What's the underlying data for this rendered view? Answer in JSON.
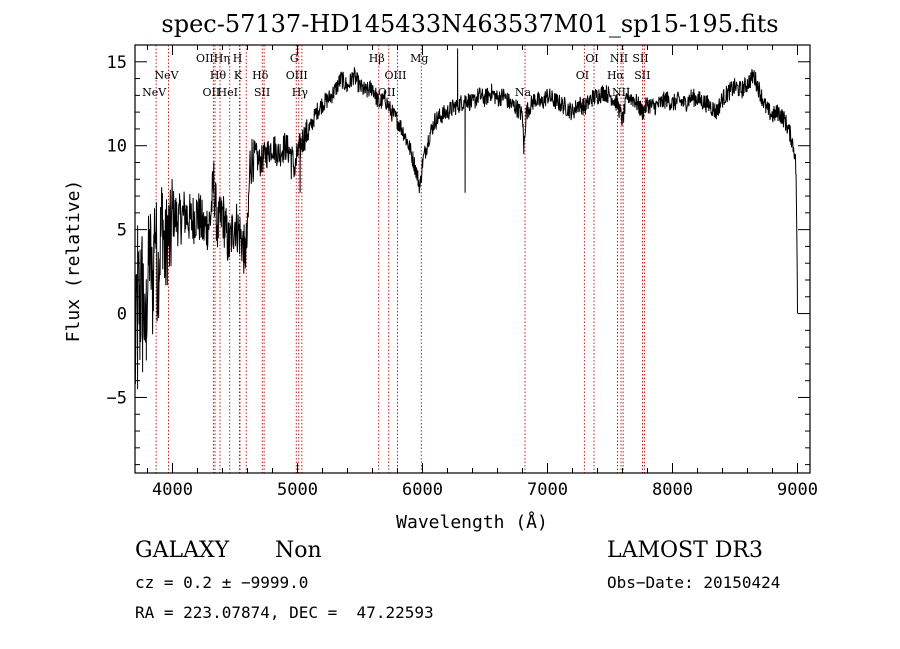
{
  "chart_data": {
    "type": "line",
    "title": "spec-57137-HD145433N463537M01_sp15-195.fits",
    "xlabel": "Wavelength (Å)",
    "ylabel": "Flux (relative)",
    "xlim": [
      3700,
      9100
    ],
    "ylim": [
      -9.5,
      16
    ],
    "xticks": [
      4000,
      5000,
      6000,
      7000,
      8000,
      9000
    ],
    "yticks": [
      -5,
      0,
      5,
      10,
      15
    ],
    "xtick_labels": [
      "4000",
      "5000",
      "6000",
      "7000",
      "8000",
      "9000"
    ],
    "ytick_labels": [
      "−5",
      "0",
      "5",
      "10",
      "15"
    ],
    "series": [
      {
        "name": "spectrum",
        "anchors": [
          [
            3700,
            -4
          ],
          [
            3720,
            3
          ],
          [
            3740,
            -1
          ],
          [
            3760,
            3
          ],
          [
            3780,
            -2
          ],
          [
            3800,
            2
          ],
          [
            3820,
            4
          ],
          [
            3840,
            1
          ],
          [
            3860,
            6
          ],
          [
            3880,
            2
          ],
          [
            3900,
            4
          ],
          [
            3920,
            6
          ],
          [
            3940,
            3
          ],
          [
            3960,
            5
          ],
          [
            3980,
            4
          ],
          [
            4000,
            6
          ],
          [
            4050,
            5.5
          ],
          [
            4100,
            6
          ],
          [
            4150,
            5.5
          ],
          [
            4200,
            6
          ],
          [
            4250,
            5
          ],
          [
            4300,
            5.5
          ],
          [
            4330,
            7.8
          ],
          [
            4360,
            5
          ],
          [
            4400,
            6
          ],
          [
            4450,
            4
          ],
          [
            4500,
            5.5
          ],
          [
            4550,
            4.5
          ],
          [
            4580,
            3.5
          ],
          [
            4600,
            4.5
          ],
          [
            4620,
            9
          ],
          [
            4650,
            9.5
          ],
          [
            4700,
            9
          ],
          [
            4750,
            9.5
          ],
          [
            4800,
            10
          ],
          [
            4850,
            9.5
          ],
          [
            4900,
            10
          ],
          [
            4950,
            9.5
          ],
          [
            4980,
            8.5
          ],
          [
            5000,
            9.5
          ],
          [
            5050,
            10.5
          ],
          [
            5100,
            11
          ],
          [
            5150,
            12
          ],
          [
            5200,
            12.5
          ],
          [
            5250,
            12.8
          ],
          [
            5300,
            13.3
          ],
          [
            5350,
            14
          ],
          [
            5400,
            13.5
          ],
          [
            5450,
            14.2
          ],
          [
            5500,
            13.5
          ],
          [
            5550,
            13.2
          ],
          [
            5600,
            13.5
          ],
          [
            5650,
            12.5
          ],
          [
            5700,
            12.8
          ],
          [
            5750,
            12
          ],
          [
            5800,
            11.5
          ],
          [
            5850,
            10.8
          ],
          [
            5900,
            9.8
          ],
          [
            5950,
            8.5
          ],
          [
            5980,
            7.5
          ],
          [
            6000,
            9
          ],
          [
            6050,
            10.5
          ],
          [
            6100,
            11.5
          ],
          [
            6150,
            11.8
          ],
          [
            6200,
            12
          ],
          [
            6250,
            12.3
          ],
          [
            6300,
            12.5
          ],
          [
            6350,
            12.8
          ],
          [
            6400,
            12.5
          ],
          [
            6450,
            13
          ],
          [
            6500,
            12.8
          ],
          [
            6550,
            13.2
          ],
          [
            6600,
            12.8
          ],
          [
            6650,
            13
          ],
          [
            6700,
            12.5
          ],
          [
            6750,
            12.3
          ],
          [
            6800,
            11.8
          ],
          [
            6810,
            10
          ],
          [
            6830,
            12
          ],
          [
            6900,
            12.8
          ],
          [
            6950,
            12.5
          ],
          [
            7000,
            13
          ],
          [
            7050,
            12.7
          ],
          [
            7100,
            12.5
          ],
          [
            7150,
            12.3
          ],
          [
            7200,
            12
          ],
          [
            7250,
            12.5
          ],
          [
            7300,
            12.3
          ],
          [
            7350,
            12.8
          ],
          [
            7400,
            13
          ],
          [
            7450,
            13.2
          ],
          [
            7500,
            13
          ],
          [
            7560,
            12.5
          ],
          [
            7600,
            11.5
          ],
          [
            7640,
            13
          ],
          [
            7700,
            12.7
          ],
          [
            7760,
            12
          ],
          [
            7800,
            12.5
          ],
          [
            7850,
            12.3
          ],
          [
            7900,
            12.5
          ],
          [
            7950,
            12.8
          ],
          [
            8000,
            12.5
          ],
          [
            8050,
            12.7
          ],
          [
            8100,
            12.5
          ],
          [
            8150,
            12.9
          ],
          [
            8200,
            12.8
          ],
          [
            8250,
            12.6
          ],
          [
            8300,
            12.4
          ],
          [
            8350,
            12
          ],
          [
            8400,
            12.8
          ],
          [
            8450,
            13.2
          ],
          [
            8500,
            13.5
          ],
          [
            8550,
            13.3
          ],
          [
            8600,
            13.7
          ],
          [
            8650,
            14.2
          ],
          [
            8700,
            13.2
          ],
          [
            8750,
            12.2
          ],
          [
            8800,
            11.8
          ],
          [
            8850,
            12
          ],
          [
            8900,
            11.5
          ],
          [
            8950,
            10.5
          ],
          [
            8980,
            9.5
          ],
          [
            8990,
            8
          ],
          [
            9000,
            0
          ]
        ],
        "spikes": [
          [
            3720,
            -4.5
          ],
          [
            3740,
            3.8
          ],
          [
            3760,
            -3.5
          ],
          [
            3790,
            -2.8
          ],
          [
            6280,
            15.8
          ],
          [
            6340,
            7.2
          ],
          [
            6810,
            9.5
          ],
          [
            5020,
            7.2
          ],
          [
            4575,
            3
          ],
          [
            4950,
            8
          ]
        ]
      }
    ],
    "lines": [
      {
        "wl": 3869,
        "label": "NeV",
        "row": 2
      },
      {
        "wl": 3968,
        "label": "NeV",
        "row": 1
      },
      {
        "wl": 4340,
        "label": "OIIHη",
        "row": 0
      },
      {
        "wl": 4327,
        "label": "OII",
        "row": 2
      },
      {
        "wl": 4380,
        "label": "Hθ",
        "row": 1
      },
      {
        "wl": 4458,
        "label": "HeI",
        "row": 2
      },
      {
        "wl": 4536,
        "label": "H",
        "row": 0
      },
      {
        "wl": 4540,
        "label": "K",
        "row": 1
      },
      {
        "wl": 4590,
        "label": "",
        "row": 3
      },
      {
        "wl": 4718,
        "label": "Hδ",
        "row": 1
      },
      {
        "wl": 4733,
        "label": "SII",
        "row": 2
      },
      {
        "wl": 4990,
        "label": "G",
        "row": 0
      },
      {
        "wl": 5010,
        "label": "OIII",
        "row": 1
      },
      {
        "wl": 5035,
        "label": "Hγ",
        "row": 2
      },
      {
        "wl": 5650,
        "label": "Hβ",
        "row": 0
      },
      {
        "wl": 5730,
        "label": "OII",
        "row": 2
      },
      {
        "wl": 5800,
        "label": "OIII",
        "row": 1
      },
      {
        "wl": 5990,
        "label": "Mg",
        "row": 0
      },
      {
        "wl": 6820,
        "label": "Na",
        "row": 2
      },
      {
        "wl": 7295,
        "label": "OI",
        "row": 1
      },
      {
        "wl": 7372,
        "label": "OI",
        "row": 0
      },
      {
        "wl": 7560,
        "label": "Hα",
        "row": 1
      },
      {
        "wl": 7588,
        "label": "NII",
        "row": 0
      },
      {
        "wl": 7605,
        "label": "NII",
        "row": 2
      },
      {
        "wl": 7760,
        "label": "SII",
        "row": 0
      },
      {
        "wl": 7775,
        "label": "SII",
        "row": 1
      }
    ]
  },
  "info": {
    "classification": "GALAXY",
    "subclass": "Non",
    "survey": "LAMOST DR3",
    "cz": "cz = 0.2 ± −9999.0",
    "obs_date": "Obs−Date: 20150424",
    "coords": "RA = 223.07874, DEC =  47.22593"
  },
  "colors": {
    "line_marker": "#cc0000",
    "spectrum": "#000000",
    "axis": "#000000"
  }
}
